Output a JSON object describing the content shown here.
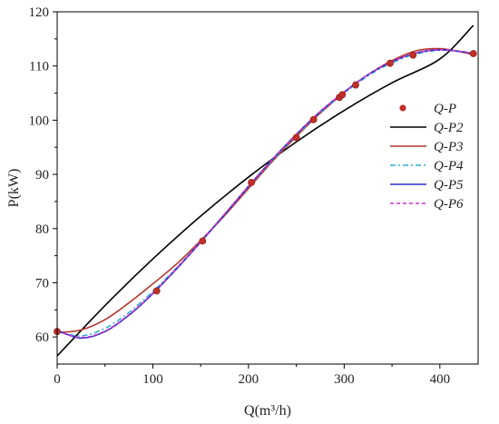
{
  "chart_data": {
    "type": "line",
    "xlabel": "Q(m³/h)",
    "ylabel": "P(kW)",
    "xlim": [
      0,
      440
    ],
    "ylim": [
      55,
      120
    ],
    "xticks": [
      "0",
      "100",
      "200",
      "300",
      "400"
    ],
    "yticks": [
      "60",
      "70",
      "80",
      "90",
      "100",
      "110",
      "120"
    ],
    "grid": false,
    "legend_position": "right-center",
    "scatter": {
      "name": "Q-P",
      "color": "#c0302a",
      "x": [
        0,
        104,
        152,
        203,
        250,
        268,
        295,
        298,
        312,
        348,
        372,
        435
      ],
      "y": [
        61.0,
        68.5,
        77.7,
        88.5,
        96.8,
        100.1,
        104.2,
        104.7,
        106.5,
        110.5,
        112.0,
        112.3
      ]
    },
    "series": [
      {
        "name": "Q-P2",
        "color": "#000000",
        "dash": "",
        "x": [
          0,
          50,
          100,
          150,
          200,
          250,
          300,
          350,
          400,
          435
        ],
        "y": [
          56.5,
          65.8,
          74.4,
          82.3,
          89.5,
          96.0,
          101.8,
          106.9,
          111.3,
          117.5
        ]
      },
      {
        "name": "Q-P3",
        "color": "#b5362a",
        "dash": "",
        "x": [
          0,
          25,
          50,
          75,
          100,
          125,
          150,
          175,
          200,
          225,
          250,
          275,
          300,
          325,
          350,
          375,
          400,
          425,
          435
        ],
        "y": [
          60.8,
          61.3,
          63.2,
          66.3,
          69.8,
          73.5,
          77.8,
          82.4,
          87.4,
          92.4,
          97.0,
          101.3,
          105.1,
          108.4,
          111.0,
          112.8,
          113.2,
          112.5,
          112.0
        ]
      },
      {
        "name": "Q-P4",
        "color": "#2ab0d0",
        "dash": "6,3,2,3",
        "x": [
          0,
          25,
          50,
          75,
          100,
          125,
          150,
          175,
          200,
          225,
          250,
          275,
          300,
          325,
          350,
          375,
          400,
          425,
          435
        ],
        "y": [
          61.0,
          60.2,
          61.6,
          64.5,
          68.4,
          72.8,
          77.6,
          82.6,
          87.7,
          92.6,
          97.2,
          101.4,
          105.0,
          108.2,
          110.6,
          112.2,
          112.9,
          112.6,
          112.2
        ]
      },
      {
        "name": "Q-P5",
        "color": "#2a2fc8",
        "dash": "",
        "x": [
          0,
          25,
          50,
          75,
          100,
          125,
          150,
          175,
          200,
          225,
          250,
          275,
          300,
          325,
          350,
          375,
          400,
          425,
          435
        ],
        "y": [
          61.2,
          59.8,
          61.0,
          64.0,
          68.0,
          72.6,
          77.5,
          82.6,
          87.8,
          92.8,
          97.4,
          101.6,
          105.2,
          108.4,
          110.8,
          112.4,
          113.0,
          112.6,
          112.2
        ]
      },
      {
        "name": "Q-P6",
        "color": "#d030d0",
        "dash": "4,3",
        "x": [
          0,
          25,
          50,
          75,
          100,
          125,
          150,
          175,
          200,
          225,
          250,
          275,
          300,
          325,
          350,
          375,
          400,
          425,
          435
        ],
        "y": [
          61.1,
          59.9,
          61.1,
          64.1,
          68.1,
          72.7,
          77.6,
          82.7,
          87.8,
          92.8,
          97.4,
          101.6,
          105.2,
          108.4,
          110.8,
          112.4,
          113.0,
          112.6,
          112.2
        ]
      }
    ]
  }
}
